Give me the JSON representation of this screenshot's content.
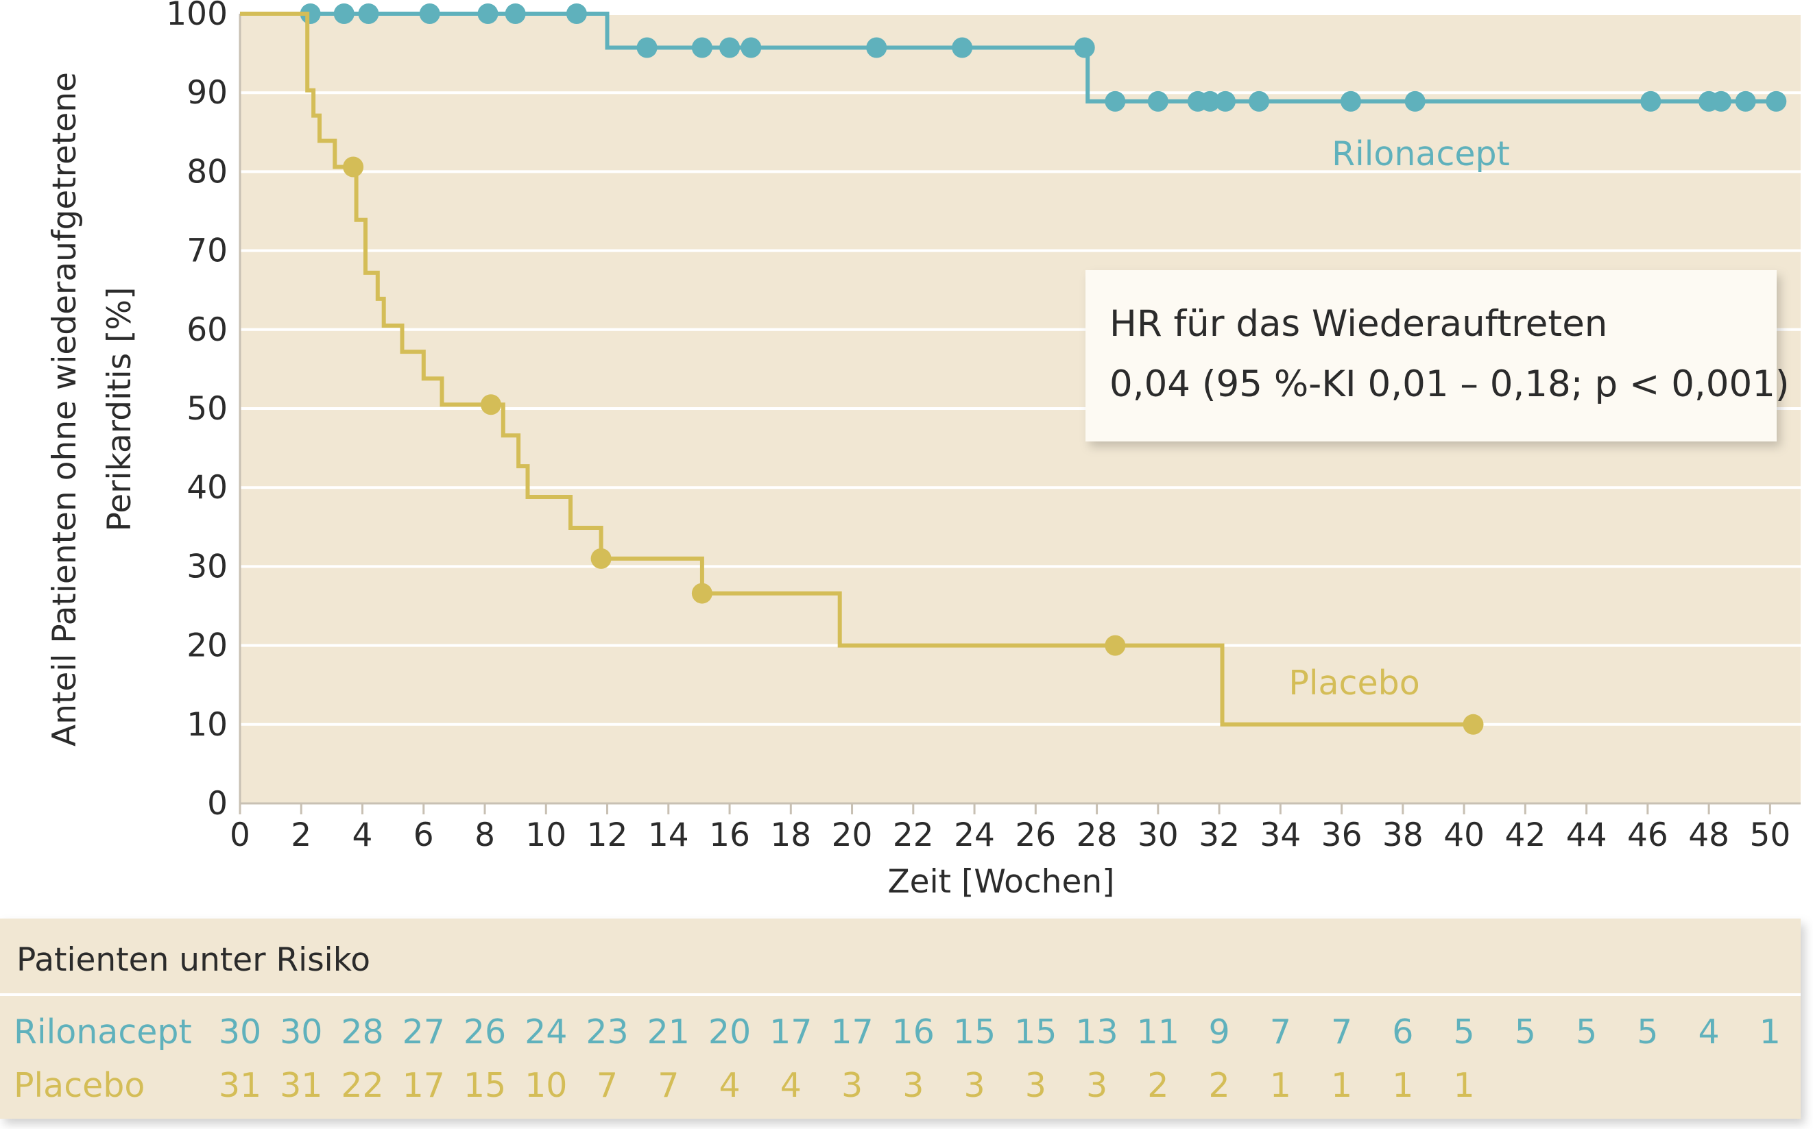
{
  "chart_data": {
    "type": "line",
    "subtype": "kaplan-meier-step",
    "xlabel": "Zeit [Wochen]",
    "ylabel_line1": "Anteil Patienten ohne wiederaufgetretene",
    "ylabel_line2": "Perikarditis [%]",
    "xlim": [
      0,
      51
    ],
    "ylim": [
      0,
      100
    ],
    "xticks": [
      0,
      2,
      4,
      6,
      8,
      10,
      12,
      14,
      16,
      18,
      20,
      22,
      24,
      26,
      28,
      30,
      32,
      34,
      36,
      38,
      40,
      42,
      44,
      46,
      48,
      50
    ],
    "yticks": [
      0,
      10,
      20,
      30,
      40,
      50,
      60,
      70,
      80,
      90,
      100
    ],
    "grid": "horizontal",
    "series": [
      {
        "name": "Rilonacept",
        "color": "#5fb1bc",
        "steps": [
          [
            0,
            100
          ],
          [
            12,
            100
          ],
          [
            12,
            95.7
          ],
          [
            27.7,
            95.7
          ],
          [
            27.7,
            88.9
          ],
          [
            50.2,
            88.9
          ]
        ],
        "censored": [
          [
            2.3,
            100
          ],
          [
            3.4,
            100
          ],
          [
            4.2,
            100
          ],
          [
            6.2,
            100
          ],
          [
            8.1,
            100
          ],
          [
            9.0,
            100
          ],
          [
            11.0,
            100
          ],
          [
            13.3,
            95.7
          ],
          [
            15.1,
            95.7
          ],
          [
            16.0,
            95.7
          ],
          [
            16.7,
            95.7
          ],
          [
            20.8,
            95.7
          ],
          [
            23.6,
            95.7
          ],
          [
            27.6,
            95.7
          ],
          [
            28.6,
            88.9
          ],
          [
            30.0,
            88.9
          ],
          [
            31.3,
            88.9
          ],
          [
            31.7,
            88.9
          ],
          [
            32.2,
            88.9
          ],
          [
            33.3,
            88.9
          ],
          [
            36.3,
            88.9
          ],
          [
            38.4,
            88.9
          ],
          [
            46.1,
            88.9
          ],
          [
            48.0,
            88.9
          ],
          [
            48.4,
            88.9
          ],
          [
            49.2,
            88.9
          ],
          [
            50.2,
            88.9
          ]
        ]
      },
      {
        "name": "Placebo",
        "color": "#d4bd57",
        "steps": [
          [
            0,
            100
          ],
          [
            2.2,
            100
          ],
          [
            2.2,
            90.3
          ],
          [
            2.4,
            90.3
          ],
          [
            2.4,
            87.1
          ],
          [
            2.6,
            87.1
          ],
          [
            2.6,
            83.9
          ],
          [
            3.1,
            83.9
          ],
          [
            3.1,
            80.6
          ],
          [
            3.8,
            80.6
          ],
          [
            3.8,
            73.9
          ],
          [
            4.1,
            73.9
          ],
          [
            4.1,
            67.2
          ],
          [
            4.5,
            67.2
          ],
          [
            4.5,
            63.9
          ],
          [
            4.7,
            63.9
          ],
          [
            4.7,
            60.5
          ],
          [
            5.3,
            60.5
          ],
          [
            5.3,
            57.2
          ],
          [
            6.0,
            57.2
          ],
          [
            6.0,
            53.8
          ],
          [
            6.6,
            53.8
          ],
          [
            6.6,
            50.5
          ],
          [
            8.6,
            50.5
          ],
          [
            8.6,
            46.6
          ],
          [
            9.1,
            46.6
          ],
          [
            9.1,
            42.7
          ],
          [
            9.4,
            42.7
          ],
          [
            9.4,
            38.8
          ],
          [
            10.8,
            38.8
          ],
          [
            10.8,
            34.9
          ],
          [
            11.8,
            34.9
          ],
          [
            11.8,
            31.0
          ],
          [
            15.1,
            31.0
          ],
          [
            15.1,
            26.6
          ],
          [
            19.6,
            26.6
          ],
          [
            19.6,
            20.0
          ],
          [
            32.1,
            20.0
          ],
          [
            32.1,
            10.0
          ],
          [
            40.3,
            10.0
          ]
        ],
        "censored": [
          [
            3.7,
            80.6
          ],
          [
            8.2,
            50.5
          ],
          [
            11.8,
            31.0
          ],
          [
            15.1,
            26.6
          ],
          [
            28.6,
            20.0
          ],
          [
            40.3,
            10.0
          ]
        ]
      }
    ],
    "series_labels": [
      {
        "text": "Rilonacept",
        "color": "#5fb1bc"
      },
      {
        "text": "Placebo",
        "color": "#d4bd57"
      }
    ],
    "annotation": {
      "line1": "HR für das Wiederauftreten",
      "line2": "0,04 (95 %-KI 0,01 – 0,18; p < 0,001)"
    }
  },
  "risk_table": {
    "title": "Patienten unter Risiko",
    "rows": [
      {
        "label": "Rilonacept",
        "color": "#5fb1bc",
        "values": [
          "30",
          "30",
          "28",
          "27",
          "26",
          "24",
          "23",
          "21",
          "20",
          "17",
          "17",
          "16",
          "15",
          "15",
          "13",
          "11",
          "9",
          "7",
          "7",
          "6",
          "5",
          "5",
          "5",
          "5",
          "4",
          "1"
        ]
      },
      {
        "label": "Placebo",
        "color": "#d4bd57",
        "values": [
          "31",
          "31",
          "22",
          "17",
          "15",
          "10",
          "7",
          "7",
          "4",
          "4",
          "3",
          "3",
          "3",
          "3",
          "3",
          "2",
          "2",
          "1",
          "1",
          "1",
          "1"
        ]
      }
    ]
  },
  "colors": {
    "plot_background": "#f1e7d3",
    "grid": "#ffffff",
    "text": "#2b2b2b"
  }
}
